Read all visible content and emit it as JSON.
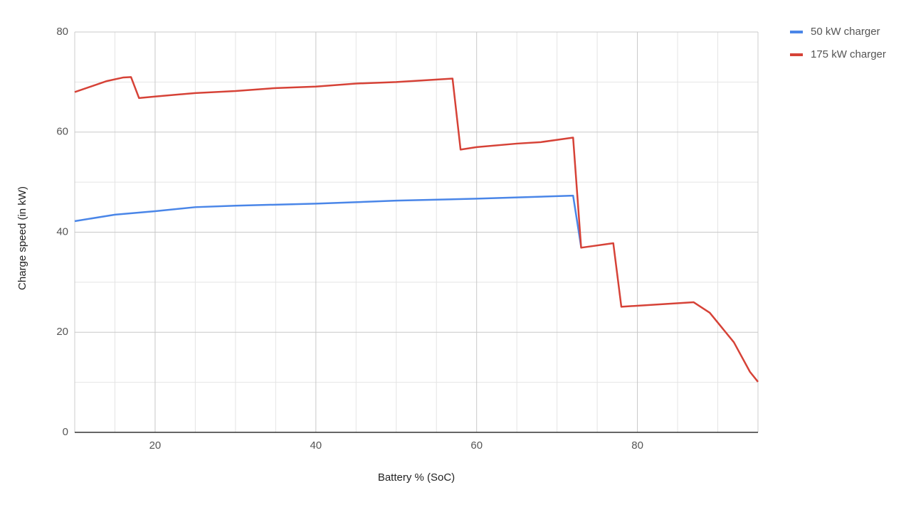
{
  "chart_data": {
    "type": "line",
    "x_label": "Battery % (SoC)",
    "y_label": "Charge speed (in kW)",
    "xlim": [
      10,
      95
    ],
    "ylim": [
      0,
      80
    ],
    "xticks": [
      20,
      40,
      60,
      80
    ],
    "yticks": [
      0,
      20,
      40,
      60,
      80
    ],
    "xminorticks": [
      15,
      25,
      30,
      35,
      45,
      50,
      55,
      65,
      70,
      75,
      85,
      90
    ],
    "yminorticks": [
      10,
      30,
      50,
      70
    ],
    "grid": true,
    "legend": "right",
    "series": [
      {
        "name": "50 kW charger",
        "color": "#4a86e8",
        "x": [
          10,
          15,
          20,
          25,
          30,
          40,
          50,
          60,
          72,
          73
        ],
        "values": [
          42.2,
          43.5,
          44.2,
          45,
          45.3,
          45.7,
          46.3,
          46.7,
          47.3,
          37
        ]
      },
      {
        "name": "175 kW charger",
        "color": "#d64237",
        "x": [
          10,
          14,
          16,
          17,
          18,
          20,
          25,
          30,
          35,
          40,
          45,
          50,
          57,
          58,
          60,
          65,
          68,
          72,
          73,
          77,
          78,
          87,
          89,
          92,
          94,
          95
        ],
        "values": [
          68,
          70.2,
          70.9,
          71,
          66.8,
          67.1,
          67.8,
          68.2,
          68.8,
          69.1,
          69.7,
          70,
          70.7,
          56.5,
          57,
          57.7,
          58,
          58.9,
          36.9,
          37.8,
          25.1,
          26,
          23.9,
          18,
          12.1,
          10.1
        ]
      }
    ]
  }
}
